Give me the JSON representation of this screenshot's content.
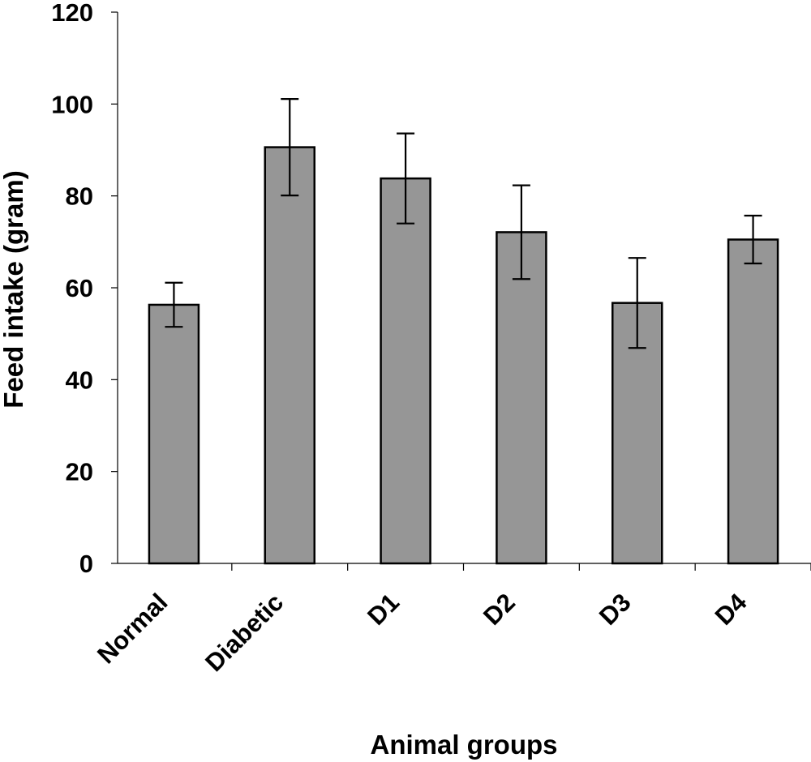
{
  "chart_data": {
    "type": "bar",
    "xlabel": "Animal groups",
    "ylabel": "Feed intake (gram)",
    "categories": [
      "Normal",
      "Diabetic",
      "D1",
      "D2",
      "D3",
      "D4"
    ],
    "values": [
      56.3,
      90.6,
      83.8,
      72.1,
      56.7,
      70.5
    ],
    "errors": [
      4.8,
      10.5,
      9.8,
      10.2,
      9.8,
      5.2
    ],
    "ylim": [
      0,
      120
    ],
    "yticks": [
      "0",
      "20",
      "40",
      "60",
      "80",
      "100",
      "120"
    ],
    "grid": false,
    "legend": "none",
    "bar_color": "#969696",
    "edge_color": "#000000"
  }
}
